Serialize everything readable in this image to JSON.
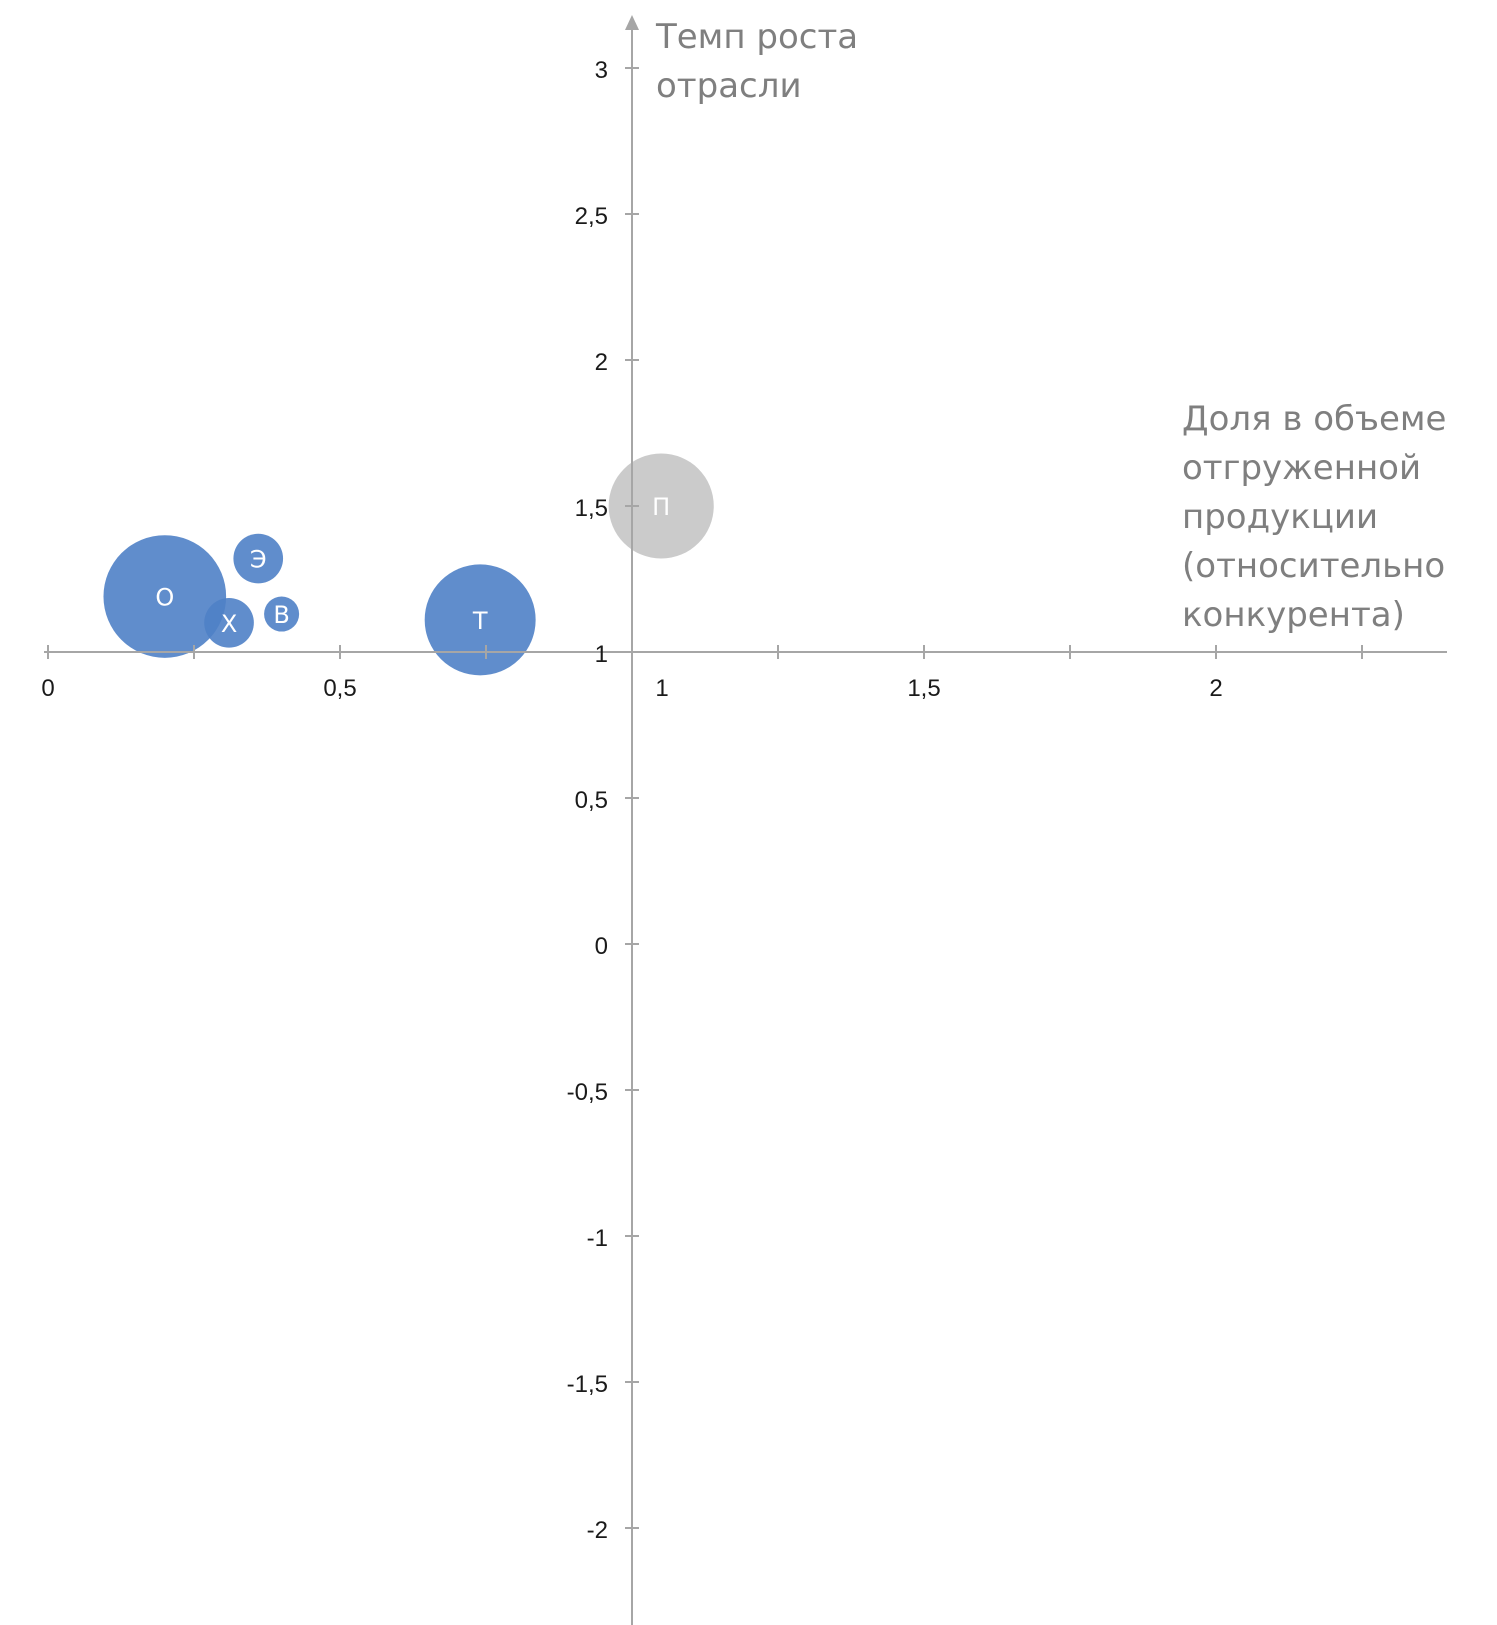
{
  "chart_data": {
    "type": "bubble",
    "x_title_lines": [
      "Доля в объеме",
      "отгруженной",
      "продукции",
      "(относительно",
      "конкурента)"
    ],
    "y_title_lines": [
      "Темп роста",
      "отрасли"
    ],
    "x_ticks": [
      {
        "value": 0,
        "label": "0"
      },
      {
        "value": 0.5,
        "label": "0,5"
      },
      {
        "value": 1,
        "label": "1"
      },
      {
        "value": 1.5,
        "label": "1,5"
      },
      {
        "value": 2,
        "label": "2"
      }
    ],
    "y_ticks": [
      {
        "value": 3,
        "label": "3"
      },
      {
        "value": 2.5,
        "label": "2,5"
      },
      {
        "value": 2,
        "label": "2"
      },
      {
        "value": 1.5,
        "label": "1,5"
      },
      {
        "value": 1,
        "label": "1"
      },
      {
        "value": 0.5,
        "label": "0,5"
      },
      {
        "value": 0,
        "label": "0"
      },
      {
        "value": -0.5,
        "label": "-0,5"
      },
      {
        "value": -1,
        "label": "-1"
      },
      {
        "value": -1.5,
        "label": "-1,5"
      },
      {
        "value": -2,
        "label": "-2"
      }
    ],
    "x_crosses_y_at": 1,
    "y_crosses_x_at": 1,
    "xlim": [
      0,
      2.4
    ],
    "ylim": [
      -2,
      3.2
    ],
    "minor_x_ticks": [
      0.25,
      0.75,
      1.25,
      1.75,
      2.25
    ],
    "colors": {
      "axis": "#a6a6a6",
      "blue": "#4f81c7",
      "grey": "#c8c8c8"
    },
    "bubbles": [
      {
        "label": "О",
        "x": 0.2,
        "y": 1.19,
        "size": 0.21,
        "color": "blue"
      },
      {
        "label": "Э",
        "x": 0.36,
        "y": 1.32,
        "size": 0.085,
        "color": "blue"
      },
      {
        "label": "Х",
        "x": 0.31,
        "y": 1.1,
        "size": 0.085,
        "color": "blue"
      },
      {
        "label": "В",
        "x": 0.4,
        "y": 1.13,
        "size": 0.06,
        "color": "blue"
      },
      {
        "label": "Т",
        "x": 0.74,
        "y": 1.11,
        "size": 0.19,
        "color": "blue"
      },
      {
        "label": "П",
        "x": 1.05,
        "y": 1.5,
        "size": 0.18,
        "color": "grey"
      }
    ]
  }
}
